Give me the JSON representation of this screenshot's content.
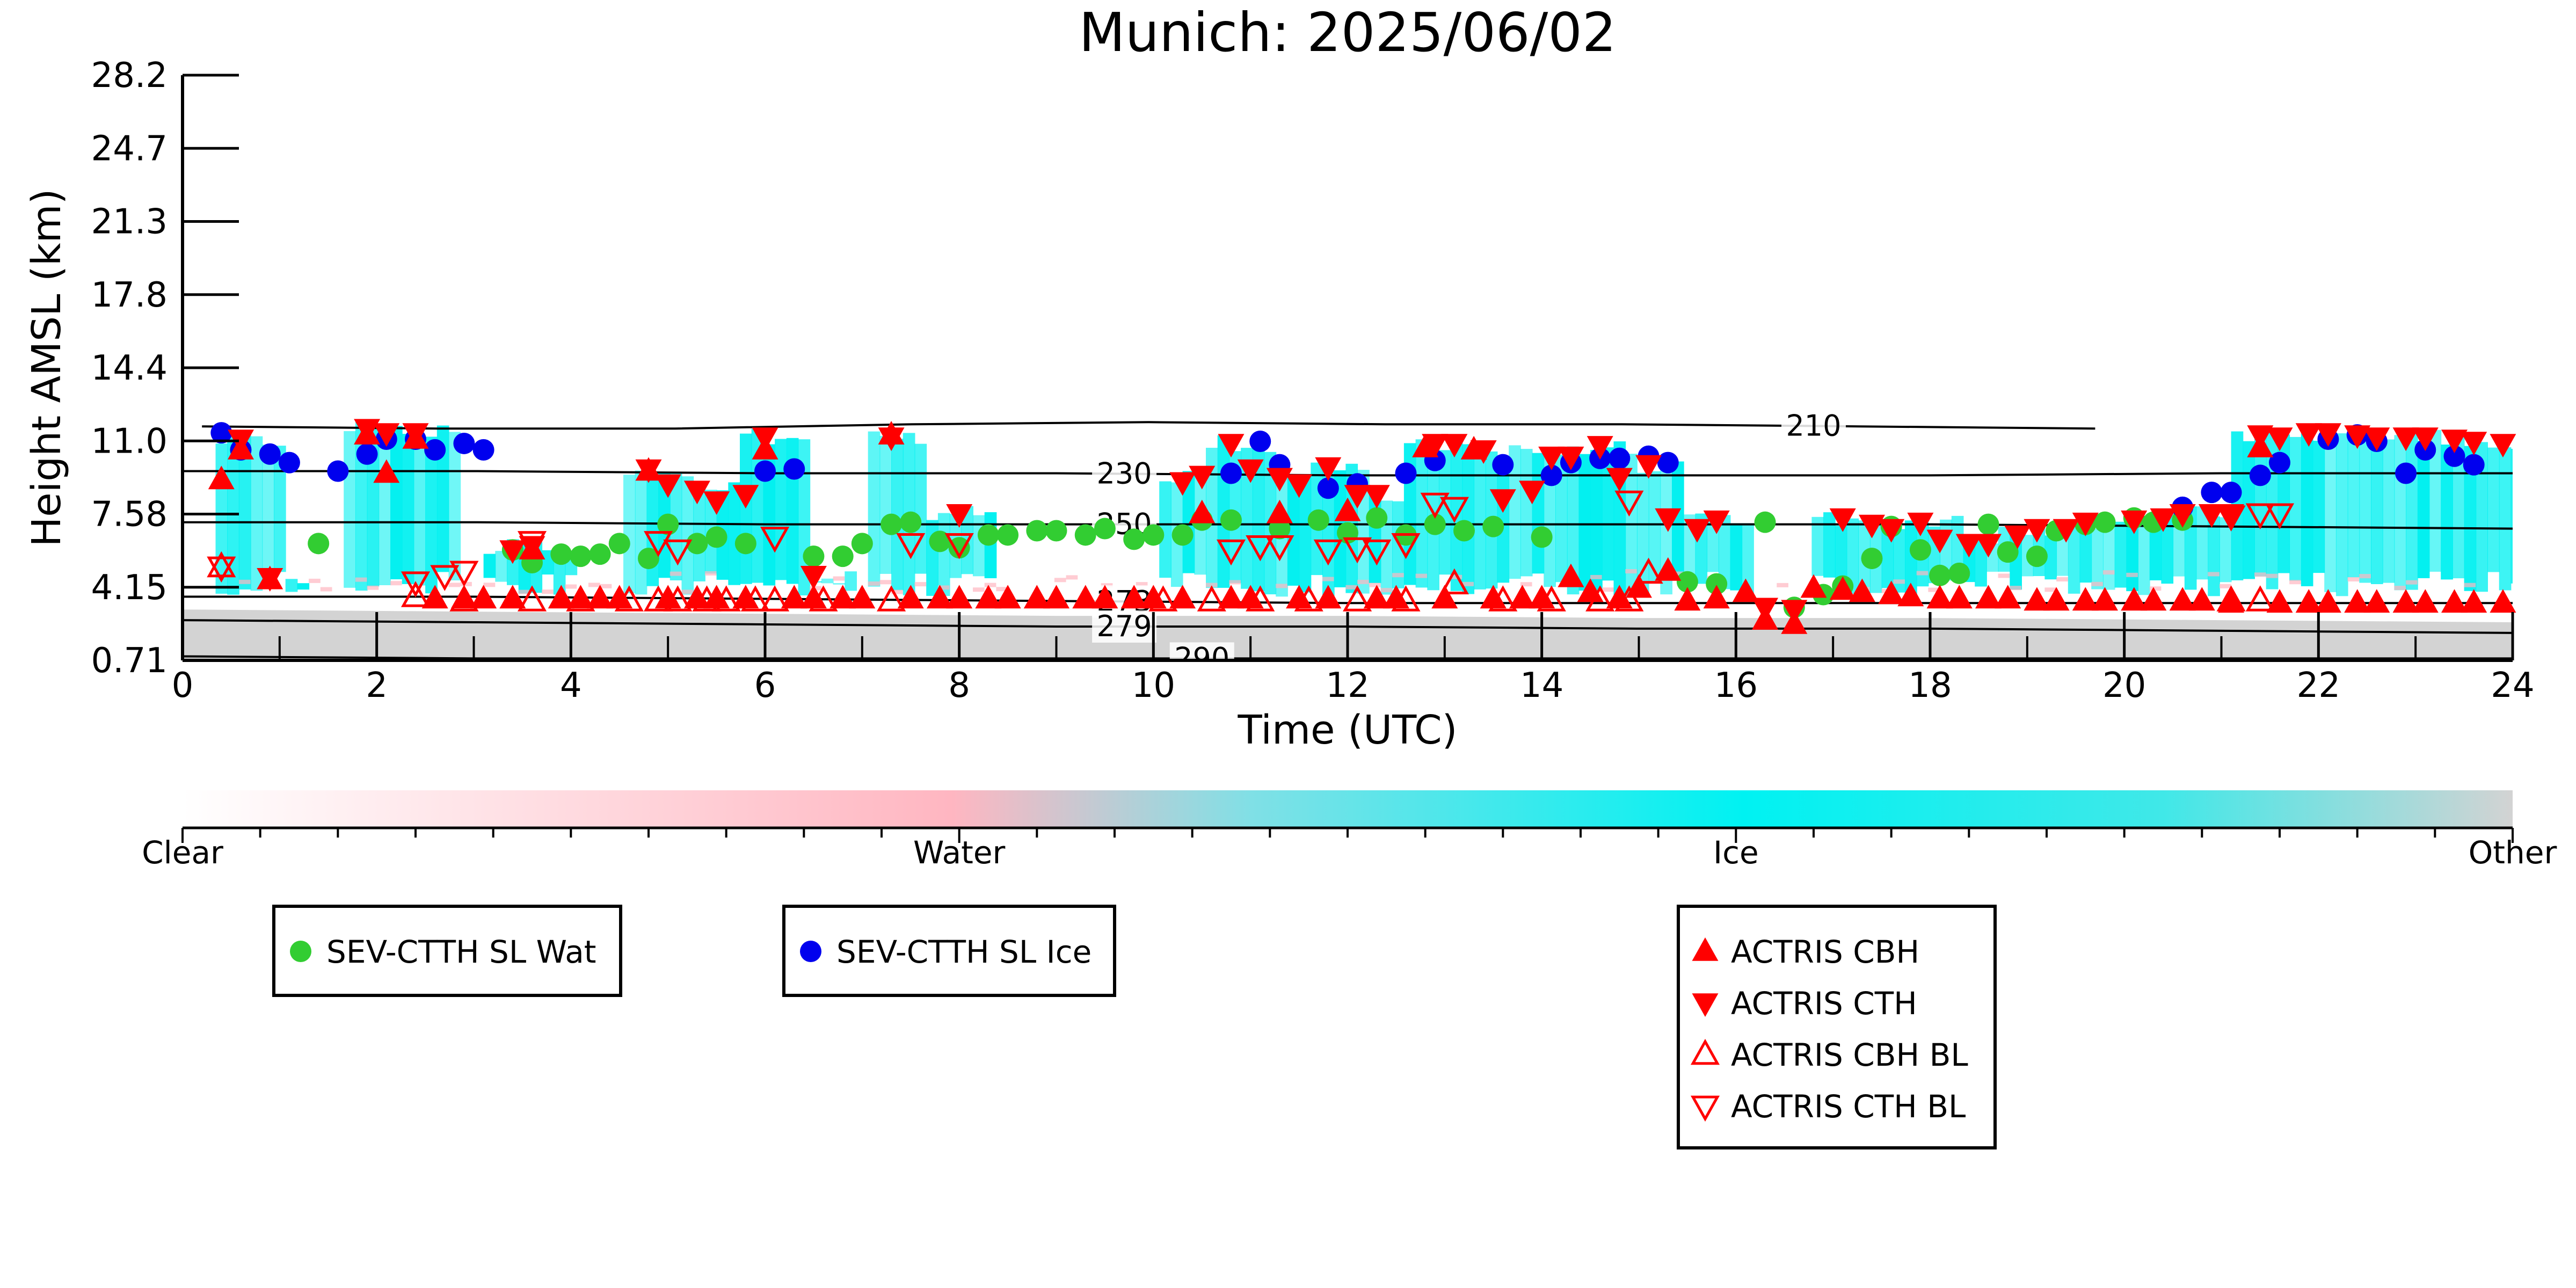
{
  "chart_data": {
    "type": "scatter",
    "title": "Munich: 2025/06/02",
    "xlabel": "Time (UTC)",
    "ylabel": "Height AMSL (km)",
    "xlim": [
      0,
      24
    ],
    "ylim": [
      0.71,
      28.2
    ],
    "xticks": [
      "0",
      "2",
      "4",
      "6",
      "8",
      "10",
      "12",
      "14",
      "16",
      "18",
      "20",
      "22",
      "24"
    ],
    "yticks": [
      "0.71",
      "4.15",
      "7.58",
      "11.0",
      "14.4",
      "17.8",
      "21.3",
      "24.7",
      "28.2"
    ],
    "grid": false,
    "colorbar": {
      "labels": [
        "Clear",
        "Water",
        "Ice",
        "Other"
      ],
      "colors": [
        "#ffffff",
        "#ffb6c1",
        "#00f0f0",
        "#d3d3d3"
      ]
    },
    "contours": [
      {
        "label": "210",
        "y": [
          11.7,
          11.6,
          11.6,
          11.8,
          11.9,
          11.8,
          11.8,
          11.7,
          11.6
        ]
      },
      {
        "label": "230",
        "y": [
          9.6,
          9.6,
          9.5,
          9.5,
          9.4,
          9.4,
          9.4,
          9.5,
          9.5
        ]
      },
      {
        "label": "250",
        "y": [
          7.2,
          7.2,
          7.1,
          7.1,
          7.1,
          7.1,
          7.1,
          7.0,
          6.9
        ]
      },
      {
        "label": "273",
        "y": [
          3.7,
          3.7,
          3.6,
          3.5,
          3.4,
          3.4,
          3.4,
          3.4,
          3.4
        ]
      },
      {
        "label": "279",
        "y": [
          2.6,
          2.5,
          2.4,
          2.3,
          2.3,
          2.2,
          2.2,
          2.1,
          2.0
        ]
      },
      {
        "label": "290",
        "y": [
          0.9,
          0.8,
          0.8,
          0.8,
          0.8,
          0.8,
          0.8,
          0.8,
          0.8
        ]
      }
    ],
    "series": [
      {
        "name": "SEV-CTTH SL Wat",
        "marker": "circle",
        "color": "#32cd32",
        "x": [
          1.4,
          3.4,
          3.6,
          3.9,
          4.1,
          4.3,
          4.5,
          4.8,
          5.0,
          5.3,
          5.5,
          5.8,
          6.5,
          6.8,
          7.0,
          7.3,
          7.5,
          7.8,
          8.0,
          8.3,
          8.5,
          8.8,
          9.0,
          9.3,
          9.5,
          9.8,
          10.0,
          10.3,
          10.5,
          10.8,
          11.3,
          11.7,
          12.0,
          12.3,
          12.6,
          12.9,
          13.2,
          13.5,
          14.0,
          15.5,
          15.8,
          16.3,
          16.6,
          16.9,
          17.1,
          17.4,
          17.6,
          17.9,
          18.1,
          18.3,
          18.6,
          18.8,
          19.1,
          19.3,
          19.6,
          19.8,
          20.1,
          20.3,
          20.6
        ],
        "y": [
          6.2,
          5.9,
          5.3,
          5.7,
          5.6,
          5.7,
          6.2,
          5.5,
          7.1,
          6.2,
          6.5,
          6.2,
          5.6,
          5.6,
          6.2,
          7.1,
          7.2,
          6.3,
          6.0,
          6.6,
          6.6,
          6.8,
          6.8,
          6.6,
          6.9,
          6.4,
          6.6,
          6.6,
          7.3,
          7.3,
          6.9,
          7.3,
          6.7,
          7.4,
          6.6,
          7.1,
          6.8,
          7.0,
          6.5,
          4.4,
          4.3,
          7.2,
          3.2,
          3.8,
          4.2,
          5.5,
          7.0,
          5.9,
          4.7,
          4.8,
          7.1,
          5.8,
          5.6,
          6.8,
          7.1,
          7.2,
          7.4,
          7.2,
          7.3
        ]
      },
      {
        "name": "SEV-CTTH SL Ice",
        "marker": "circle",
        "color": "#0000ee",
        "x": [
          0.4,
          0.6,
          0.9,
          1.1,
          1.6,
          1.9,
          2.1,
          2.4,
          2.6,
          2.9,
          3.1,
          6.0,
          6.3,
          10.8,
          11.1,
          11.3,
          11.8,
          12.1,
          12.6,
          12.9,
          13.6,
          14.1,
          14.3,
          14.6,
          14.8,
          15.1,
          15.3,
          20.6,
          20.9,
          21.1,
          21.4,
          21.6,
          22.1,
          22.4,
          22.6,
          22.9,
          23.1,
          23.4,
          23.6
        ],
        "y": [
          11.4,
          10.6,
          10.4,
          10.0,
          9.6,
          10.4,
          11.1,
          11.1,
          10.6,
          10.9,
          10.6,
          9.6,
          9.7,
          9.5,
          11.0,
          9.9,
          8.8,
          9.0,
          9.5,
          10.1,
          9.9,
          9.4,
          10.0,
          10.2,
          10.2,
          10.3,
          10.0,
          7.9,
          8.6,
          8.6,
          9.4,
          10.0,
          11.1,
          11.3,
          11.0,
          9.5,
          10.6,
          10.3,
          9.9
        ]
      },
      {
        "name": "ACTRIS CBH",
        "marker": "triangle-up",
        "color": "#ff0000",
        "x": [
          0.4,
          0.6,
          0.9,
          1.9,
          2.1,
          2.4,
          2.6,
          2.9,
          3.1,
          3.4,
          3.6,
          3.9,
          4.1,
          4.3,
          4.5,
          4.8,
          5.0,
          5.3,
          5.5,
          5.8,
          6.0,
          6.3,
          6.5,
          6.8,
          7.0,
          7.3,
          7.5,
          7.8,
          8.0,
          8.3,
          8.5,
          8.8,
          9.0,
          9.3,
          9.5,
          9.8,
          10.0,
          10.3,
          10.5,
          10.8,
          11.0,
          11.3,
          11.5,
          11.8,
          12.0,
          12.3,
          12.5,
          12.8,
          13.0,
          13.3,
          13.5,
          13.8,
          14.0,
          14.3,
          14.5,
          14.8,
          15.0,
          15.3,
          15.5,
          15.8,
          16.1,
          16.3,
          16.6,
          16.8,
          17.1,
          17.3,
          17.6,
          17.8,
          18.1,
          18.3,
          18.6,
          18.8,
          19.1,
          19.3,
          19.6,
          19.8,
          20.1,
          20.3,
          20.6,
          20.8,
          21.1,
          21.4,
          21.6,
          21.9,
          22.1,
          22.4,
          22.6,
          22.9,
          23.1,
          23.4,
          23.6,
          23.9
        ],
        "y": [
          9.2,
          10.6,
          4.5,
          11.3,
          9.5,
          11.1,
          3.6,
          3.6,
          3.6,
          3.6,
          5.9,
          3.6,
          3.6,
          3.6,
          3.6,
          9.6,
          3.6,
          3.6,
          3.6,
          3.6,
          10.6,
          3.6,
          3.6,
          3.6,
          3.6,
          11.3,
          3.6,
          3.6,
          3.6,
          3.6,
          3.6,
          3.6,
          3.6,
          3.6,
          3.6,
          3.6,
          3.6,
          3.6,
          7.6,
          3.6,
          3.6,
          7.6,
          3.6,
          3.6,
          7.7,
          3.6,
          3.6,
          10.7,
          3.6,
          10.6,
          3.6,
          3.6,
          3.6,
          4.6,
          3.9,
          3.6,
          4.1,
          4.9,
          3.5,
          3.6,
          3.9,
          2.6,
          2.4,
          4.1,
          4.0,
          3.9,
          3.8,
          3.7,
          3.6,
          3.6,
          3.6,
          3.6,
          3.5,
          3.5,
          3.5,
          3.5,
          3.5,
          3.5,
          3.5,
          3.5,
          3.4,
          10.7,
          3.4,
          3.4,
          3.4,
          3.4,
          3.4,
          3.4,
          3.4,
          3.4,
          3.4,
          3.4
        ]
      },
      {
        "name": "ACTRIS CTH",
        "marker": "triangle-down",
        "color": "#ff0000",
        "x": [
          0.6,
          0.9,
          1.9,
          2.1,
          2.4,
          3.4,
          3.6,
          4.8,
          5.0,
          5.3,
          5.5,
          5.8,
          6.0,
          6.5,
          7.3,
          8.0,
          10.3,
          10.5,
          10.8,
          11.0,
          11.3,
          11.5,
          11.8,
          12.1,
          12.3,
          12.9,
          13.1,
          13.4,
          13.6,
          13.9,
          14.1,
          14.3,
          14.6,
          14.8,
          15.1,
          15.3,
          15.6,
          15.8,
          16.3,
          16.6,
          17.1,
          17.4,
          17.6,
          17.9,
          18.1,
          18.4,
          18.6,
          18.9,
          19.1,
          19.4,
          19.6,
          20.1,
          20.4,
          20.6,
          20.9,
          21.1,
          21.4,
          21.6,
          21.9,
          22.1,
          22.4,
          22.6,
          22.9,
          23.1,
          23.4,
          23.6,
          23.9
        ],
        "y": [
          11.1,
          4.6,
          11.6,
          11.4,
          11.4,
          5.9,
          6.1,
          9.7,
          9.0,
          8.7,
          8.2,
          8.5,
          11.2,
          4.7,
          11.2,
          7.6,
          9.1,
          9.4,
          10.9,
          9.7,
          9.3,
          9.0,
          9.8,
          8.5,
          8.5,
          10.9,
          10.9,
          10.6,
          8.3,
          8.7,
          10.3,
          10.3,
          10.8,
          9.3,
          9.9,
          7.4,
          6.9,
          7.3,
          3.2,
          3.1,
          7.4,
          7.1,
          6.9,
          7.2,
          6.4,
          6.2,
          6.2,
          6.6,
          6.9,
          6.9,
          7.2,
          7.3,
          7.4,
          7.6,
          7.6,
          7.6,
          11.3,
          11.2,
          11.4,
          11.4,
          11.3,
          11.2,
          11.2,
          11.2,
          11.1,
          11.0,
          10.9
        ]
      },
      {
        "name": "ACTRIS CBH BL",
        "marker": "triangle-up-open",
        "color": "#ff0000",
        "x": [
          0.4,
          2.4,
          2.9,
          3.6,
          4.1,
          4.6,
          4.9,
          5.1,
          5.4,
          5.6,
          5.9,
          6.1,
          6.6,
          7.3,
          10.1,
          10.6,
          11.1,
          11.6,
          12.1,
          12.6,
          13.1,
          13.6,
          14.1,
          14.6,
          14.9,
          15.1,
          21.1,
          21.4
        ],
        "y": [
          5.1,
          3.7,
          3.5,
          3.5,
          3.5,
          3.5,
          3.5,
          3.5,
          3.5,
          3.5,
          3.5,
          3.5,
          3.5,
          3.5,
          3.5,
          3.5,
          3.5,
          3.5,
          3.5,
          3.5,
          4.3,
          3.5,
          3.5,
          3.5,
          3.5,
          4.8,
          3.5,
          3.5
        ]
      },
      {
        "name": "ACTRIS CTH BL",
        "marker": "triangle-down-open",
        "color": "#ff0000",
        "x": [
          0.4,
          2.4,
          2.7,
          2.9,
          3.6,
          4.9,
          5.1,
          6.1,
          7.5,
          8.0,
          10.8,
          11.1,
          11.3,
          11.8,
          12.1,
          12.3,
          12.6,
          12.9,
          13.1,
          14.9,
          21.1,
          21.4,
          21.6
        ],
        "y": [
          5.1,
          4.4,
          4.7,
          4.9,
          6.3,
          6.3,
          5.9,
          6.5,
          6.2,
          6.2,
          5.9,
          6.1,
          6.1,
          5.9,
          6.0,
          5.9,
          6.2,
          8.1,
          7.9,
          8.2,
          7.5,
          7.6,
          7.6
        ]
      }
    ],
    "legends": [
      {
        "entries": [
          "SEV-CTTH SL Wat"
        ]
      },
      {
        "entries": [
          "SEV-CTTH SL Ice"
        ]
      },
      {
        "entries": [
          "ACTRIS CBH",
          "ACTRIS CTH",
          "ACTRIS CBH BL",
          "ACTRIS CTH BL"
        ]
      }
    ]
  }
}
